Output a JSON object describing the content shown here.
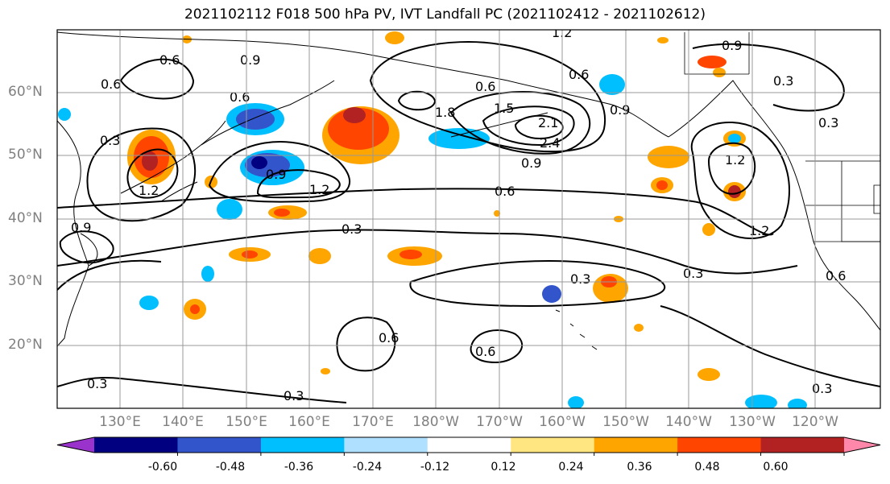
{
  "title": "2021102112 F018 500 hPa PV, IVT Landfall PC (2021102412 - 2021102612)",
  "lat_labels": [
    "60°N",
    "50°N",
    "40°N",
    "30°N",
    "20°N"
  ],
  "lon_labels": [
    "130°E",
    "140°E",
    "150°E",
    "160°E",
    "170°E",
    "180°W",
    "170°W",
    "160°W",
    "150°W",
    "140°W",
    "130°W",
    "120°W"
  ],
  "contour_labels": [
    "0.3",
    "0.6",
    "0.9",
    "1.2",
    "1.5",
    "1.8",
    "2.1",
    "2.4"
  ],
  "colorbar": {
    "tick_labels": [
      "-0.60",
      "-0.48",
      "-0.36",
      "-0.24",
      "-0.12",
      "0.12",
      "0.24",
      "0.36",
      "0.48",
      "0.60"
    ],
    "colors": [
      "#9933cc",
      "#000080",
      "#3355cc",
      "#00bfff",
      "#b0e0ff",
      "#ffffff",
      "#ffe680",
      "#ffa500",
      "#ff4500",
      "#b22222",
      "#ff88aa"
    ]
  }
}
